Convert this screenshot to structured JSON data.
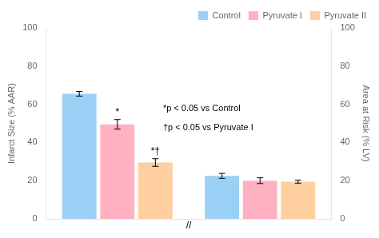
{
  "chart_data": {
    "type": "bar",
    "categories": [
      null,
      null
    ],
    "series": [
      {
        "name": "Control",
        "values": [
          65.5,
          22.5
        ],
        "errors": [
          1.2,
          1.3
        ],
        "sig_labels": [
          null,
          null
        ]
      },
      {
        "name": "Pyruvate I",
        "values": [
          49.5,
          20.0
        ],
        "errors": [
          2.5,
          1.5
        ],
        "sig_labels": [
          "*",
          null
        ]
      },
      {
        "name": "Pyruvate II",
        "values": [
          29.5,
          19.5
        ],
        "errors": [
          2.0,
          0.8
        ],
        "sig_labels": [
          "*†",
          null
        ]
      }
    ],
    "ylabel": "Infarct Size (% AAR)",
    "y2label": "Area at Risk (% LV)",
    "ylim": [
      0,
      100
    ],
    "yticks": [
      0,
      20,
      40,
      60,
      80,
      100
    ],
    "y2lim": [
      0,
      100
    ],
    "y2ticks": [
      0,
      20,
      40,
      60,
      80,
      100
    ],
    "annotations": [
      "*p < 0.05 vs Control",
      "†p < 0.05 vs Pyruvate I"
    ],
    "axis_break": "//",
    "legend": "upper right",
    "grid": false,
    "tick_labels": "y"
  }
}
